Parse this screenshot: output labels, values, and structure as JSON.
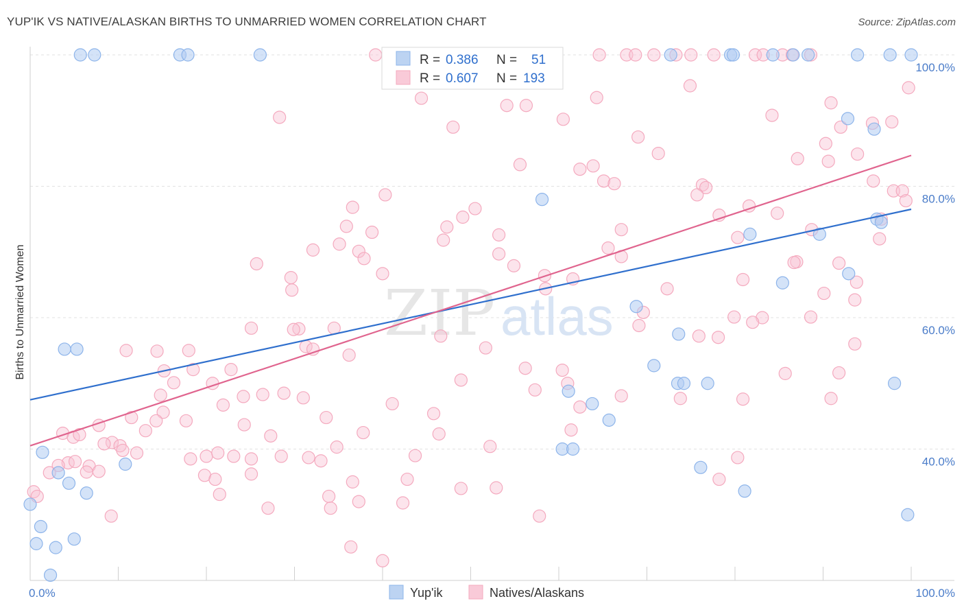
{
  "title": "YUP'IK VS NATIVE/ALASKAN BIRTHS TO UNMARRIED WOMEN CORRELATION CHART",
  "source": "Source: ZipAtlas.com",
  "colors": {
    "blue": "#8db4ea",
    "blue_line": "#2f6fcd",
    "pink": "#f4a9be",
    "pink_line": "#e0648e",
    "tick": "#4a7cc9"
  },
  "chart_data": {
    "type": "scatter",
    "ylabel": "Births to Unmarried Women",
    "xlim": [
      0,
      100
    ],
    "ylim": [
      20,
      100
    ],
    "x_tick_labels": [
      {
        "value": 0,
        "label": "0.0%"
      },
      {
        "value": 100,
        "label": "100.0%"
      }
    ],
    "y_tick_labels": [
      {
        "value": 40,
        "label": "40.0%"
      },
      {
        "value": 60,
        "label": "60.0%"
      },
      {
        "value": 80,
        "label": "80.0%"
      },
      {
        "value": 100,
        "label": "100.0%"
      }
    ],
    "legend": {
      "rows": [
        {
          "r_label": "R = ",
          "r_value": "0.386",
          "n_label": "N = ",
          "n_value": "51"
        },
        {
          "r_label": "R = ",
          "r_value": "0.607",
          "n_label": "N = ",
          "n_value": "193"
        }
      ]
    },
    "series": [
      {
        "name": "Yup'ik",
        "color": "#8db4ea",
        "trend": {
          "x": [
            0,
            100
          ],
          "y": [
            47.5,
            76.5
          ]
        },
        "points": [
          [
            5.7,
            100
          ],
          [
            7.3,
            100
          ],
          [
            17.0,
            100
          ],
          [
            17.9,
            100
          ],
          [
            26.1,
            100
          ],
          [
            72.7,
            100
          ],
          [
            79.5,
            100
          ],
          [
            79.8,
            100
          ],
          [
            84.3,
            100
          ],
          [
            86.6,
            100
          ],
          [
            88.3,
            100
          ],
          [
            93.9,
            100
          ],
          [
            97.6,
            100
          ],
          [
            100,
            100
          ],
          [
            92.8,
            90.3
          ],
          [
            95.8,
            88.7
          ],
          [
            58.1,
            78.0
          ],
          [
            81.7,
            72.7
          ],
          [
            89.6,
            72.7
          ],
          [
            96.1,
            75.0
          ],
          [
            96.6,
            74.5
          ],
          [
            92.9,
            66.7
          ],
          [
            85.4,
            65.3
          ],
          [
            68.8,
            61.7
          ],
          [
            73.6,
            57.5
          ],
          [
            70.8,
            52.7
          ],
          [
            73.5,
            50.0
          ],
          [
            74.2,
            50.0
          ],
          [
            76.9,
            50.0
          ],
          [
            61.1,
            48.8
          ],
          [
            63.8,
            46.9
          ],
          [
            65.7,
            44.4
          ],
          [
            60.4,
            40.0
          ],
          [
            61.6,
            40.0
          ],
          [
            98.1,
            50.0
          ],
          [
            3.9,
            55.2
          ],
          [
            5.3,
            55.2
          ],
          [
            1.4,
            39.5
          ],
          [
            3.2,
            36.4
          ],
          [
            4.4,
            34.8
          ],
          [
            10.8,
            37.7
          ],
          [
            6.4,
            33.3
          ],
          [
            0.0,
            31.6
          ],
          [
            1.2,
            28.2
          ],
          [
            0.7,
            25.6
          ],
          [
            2.9,
            25.0
          ],
          [
            5.0,
            26.3
          ],
          [
            2.3,
            20.8
          ],
          [
            76.1,
            37.2
          ],
          [
            81.1,
            33.6
          ],
          [
            99.6,
            30.0
          ]
        ]
      },
      {
        "name": "Natives/Alaskans",
        "color": "#f4a9be",
        "trend": {
          "x": [
            0,
            100
          ],
          "y": [
            40.5,
            84.7
          ]
        },
        "points": [
          [
            39.2,
            100
          ],
          [
            44.3,
            100
          ],
          [
            53.5,
            100
          ],
          [
            59.1,
            100
          ],
          [
            64.6,
            100
          ],
          [
            67.7,
            100
          ],
          [
            68.7,
            100
          ],
          [
            70.8,
            100
          ],
          [
            73.3,
            100
          ],
          [
            75.0,
            100
          ],
          [
            77.6,
            100
          ],
          [
            82.3,
            100
          ],
          [
            83.2,
            100
          ],
          [
            85.4,
            100
          ],
          [
            86.5,
            100
          ],
          [
            88.6,
            100
          ],
          [
            44.3,
            98.0
          ],
          [
            74.9,
            95.3
          ],
          [
            99.7,
            95.0
          ],
          [
            44.4,
            93.4
          ],
          [
            64.3,
            93.5
          ],
          [
            90.9,
            92.7
          ],
          [
            54.1,
            92.3
          ],
          [
            56.3,
            92.3
          ],
          [
            84.2,
            90.8
          ],
          [
            28.3,
            90.5
          ],
          [
            60.5,
            90.2
          ],
          [
            48.0,
            89.0
          ],
          [
            92.0,
            89.0
          ],
          [
            95.6,
            89.6
          ],
          [
            97.8,
            89.8
          ],
          [
            69.0,
            87.5
          ],
          [
            90.3,
            86.5
          ],
          [
            71.3,
            85.0
          ],
          [
            93.9,
            84.9
          ],
          [
            87.1,
            84.2
          ],
          [
            90.6,
            83.8
          ],
          [
            55.6,
            83.3
          ],
          [
            62.4,
            82.6
          ],
          [
            63.9,
            83.1
          ],
          [
            65.1,
            80.8
          ],
          [
            66.3,
            80.4
          ],
          [
            76.3,
            80.2
          ],
          [
            76.7,
            79.8
          ],
          [
            95.7,
            80.8
          ],
          [
            98.0,
            79.3
          ],
          [
            99.0,
            79.3
          ],
          [
            40.3,
            78.7
          ],
          [
            75.7,
            78.7
          ],
          [
            99.4,
            77.8
          ],
          [
            36.6,
            76.8
          ],
          [
            50.5,
            76.6
          ],
          [
            81.6,
            77.0
          ],
          [
            49.1,
            75.3
          ],
          [
            78.2,
            75.6
          ],
          [
            84.8,
            75.9
          ],
          [
            96.6,
            75.0
          ],
          [
            35.9,
            73.9
          ],
          [
            47.3,
            73.8
          ],
          [
            67.1,
            73.4
          ],
          [
            88.7,
            73.4
          ],
          [
            38.8,
            73.0
          ],
          [
            53.2,
            72.6
          ],
          [
            80.3,
            72.2
          ],
          [
            96.4,
            72.0
          ],
          [
            46.9,
            71.8
          ],
          [
            35.1,
            71.2
          ],
          [
            65.6,
            70.6
          ],
          [
            32.1,
            70.3
          ],
          [
            37.3,
            70.1
          ],
          [
            53.2,
            69.7
          ],
          [
            67.1,
            69.3
          ],
          [
            37.9,
            69.0
          ],
          [
            25.7,
            68.2
          ],
          [
            54.9,
            67.9
          ],
          [
            87.0,
            68.5
          ],
          [
            86.7,
            68.4
          ],
          [
            91.8,
            68.3
          ],
          [
            29.6,
            66.1
          ],
          [
            40.0,
            66.7
          ],
          [
            58.4,
            66.4
          ],
          [
            80.9,
            65.8
          ],
          [
            61.6,
            65.9
          ],
          [
            93.8,
            65.4
          ],
          [
            29.7,
            64.2
          ],
          [
            58.5,
            64.4
          ],
          [
            72.3,
            64.4
          ],
          [
            90.1,
            63.7
          ],
          [
            93.6,
            62.7
          ],
          [
            69.6,
            60.8
          ],
          [
            79.9,
            60.1
          ],
          [
            83.1,
            60.0
          ],
          [
            88.6,
            60.1
          ],
          [
            82.0,
            59.3
          ],
          [
            69.1,
            58.8
          ],
          [
            34.5,
            58.4
          ],
          [
            25.1,
            58.4
          ],
          [
            30.5,
            58.3
          ],
          [
            29.9,
            58.2
          ],
          [
            46.6,
            57.2
          ],
          [
            75.9,
            57.2
          ],
          [
            78.1,
            57.0
          ],
          [
            93.6,
            56.0
          ],
          [
            31.3,
            55.6
          ],
          [
            32.1,
            55.2
          ],
          [
            51.7,
            55.4
          ],
          [
            10.9,
            55.0
          ],
          [
            14.4,
            54.9
          ],
          [
            18.0,
            55.0
          ],
          [
            36.2,
            54.3
          ],
          [
            18.5,
            52.1
          ],
          [
            22.8,
            52.1
          ],
          [
            60.4,
            52.0
          ],
          [
            56.2,
            52.3
          ],
          [
            85.7,
            51.5
          ],
          [
            91.8,
            51.6
          ],
          [
            15.2,
            51.9
          ],
          [
            16.3,
            50.1
          ],
          [
            20.7,
            50.0
          ],
          [
            48.9,
            50.5
          ],
          [
            57.3,
            49.0
          ],
          [
            61.0,
            50.0
          ],
          [
            14.8,
            48.2
          ],
          [
            24.2,
            48.0
          ],
          [
            26.4,
            48.3
          ],
          [
            28.8,
            48.5
          ],
          [
            31.0,
            47.8
          ],
          [
            41.1,
            46.9
          ],
          [
            67.1,
            48.1
          ],
          [
            73.8,
            47.7
          ],
          [
            80.9,
            47.6
          ],
          [
            90.9,
            47.7
          ],
          [
            15.1,
            45.6
          ],
          [
            21.9,
            46.7
          ],
          [
            11.5,
            44.8
          ],
          [
            14.3,
            44.3
          ],
          [
            17.7,
            44.3
          ],
          [
            24.3,
            43.7
          ],
          [
            33.6,
            44.8
          ],
          [
            45.8,
            45.4
          ],
          [
            62.4,
            46.4
          ],
          [
            7.8,
            43.6
          ],
          [
            13.1,
            42.8
          ],
          [
            3.7,
            42.4
          ],
          [
            4.9,
            41.8
          ],
          [
            5.6,
            42.2
          ],
          [
            9.3,
            41.0
          ],
          [
            10.2,
            40.5
          ],
          [
            8.4,
            40.8
          ],
          [
            10.5,
            39.8
          ],
          [
            12.1,
            39.4
          ],
          [
            27.3,
            42.0
          ],
          [
            37.8,
            42.5
          ],
          [
            46.4,
            42.3
          ],
          [
            61.4,
            42.9
          ],
          [
            18.2,
            38.5
          ],
          [
            20.0,
            38.9
          ],
          [
            21.3,
            39.4
          ],
          [
            23.1,
            38.9
          ],
          [
            25.1,
            38.5
          ],
          [
            28.5,
            38.9
          ],
          [
            31.6,
            38.7
          ],
          [
            34.8,
            40.3
          ],
          [
            33.0,
            38.2
          ],
          [
            43.7,
            39.0
          ],
          [
            52.2,
            40.4
          ],
          [
            80.3,
            38.7
          ],
          [
            4.3,
            37.9
          ],
          [
            5.1,
            38.1
          ],
          [
            3.2,
            37.5
          ],
          [
            6.7,
            37.4
          ],
          [
            6.4,
            36.5
          ],
          [
            7.8,
            36.6
          ],
          [
            19.8,
            36.0
          ],
          [
            21.0,
            35.4
          ],
          [
            25.1,
            36.2
          ],
          [
            36.6,
            35.0
          ],
          [
            42.8,
            35.4
          ],
          [
            48.9,
            34.0
          ],
          [
            52.9,
            34.1
          ],
          [
            21.5,
            33.1
          ],
          [
            33.9,
            32.8
          ],
          [
            57.8,
            29.8
          ],
          [
            78.2,
            35.4
          ],
          [
            2.2,
            36.4
          ],
          [
            0.4,
            33.5
          ],
          [
            0.8,
            32.8
          ],
          [
            9.2,
            29.8
          ],
          [
            27.0,
            31.0
          ],
          [
            34.1,
            31.0
          ],
          [
            37.3,
            32.0
          ],
          [
            42.3,
            31.8
          ],
          [
            36.4,
            25.1
          ],
          [
            40.0,
            23.0
          ]
        ]
      }
    ]
  }
}
